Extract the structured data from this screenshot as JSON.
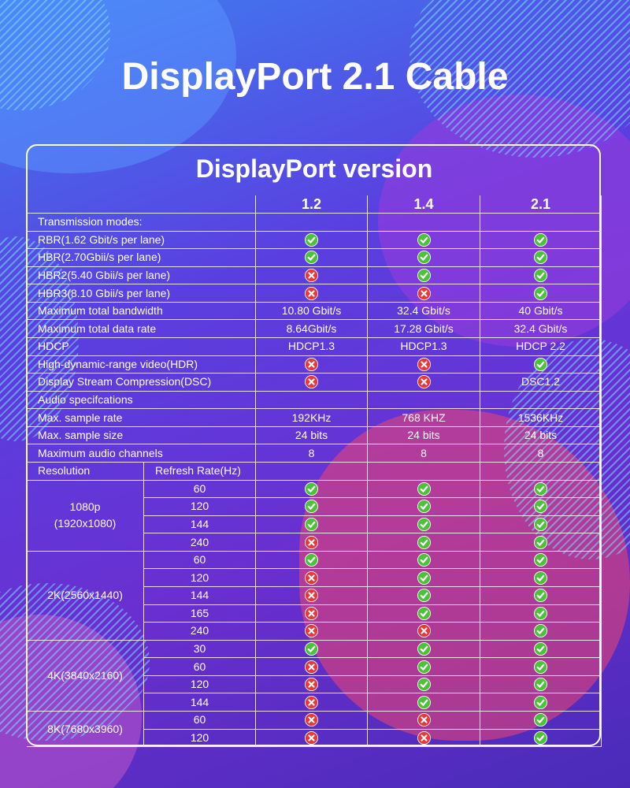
{
  "title": "DisplayPort 2.1 Cable",
  "table": {
    "heading": "DisplayPort version",
    "columns": [
      "1.2",
      "1.4",
      "2.1"
    ],
    "rows": [
      {
        "label": "Transmission modes:"
      },
      {
        "label": "RBR(1.62 Gbit/s per lane)",
        "cells": [
          true,
          true,
          true
        ]
      },
      {
        "label": "HBR(2.70Gbii/s per lane)",
        "cells": [
          true,
          true,
          true
        ]
      },
      {
        "label": "HBR2(5.40 Gbii/s per lane)",
        "cells": [
          false,
          true,
          true
        ]
      },
      {
        "label": "HBR3(8.10 Gbii/s per lane)",
        "cells": [
          false,
          false,
          true
        ]
      },
      {
        "label": "Maximum total bandwidth",
        "cells": [
          "10.80 Gbit/s",
          "32.4 Gbit/s",
          "40 Gbit/s"
        ]
      },
      {
        "label": "Maximum total data rate",
        "cells": [
          "8.64Gbit/s",
          "17.28 Gbit/s",
          "32.4 Gbit/s"
        ]
      },
      {
        "label": "HDCP",
        "cells": [
          "HDCP1.3",
          "HDCP1.3",
          "HDCP 2.2"
        ]
      },
      {
        "label": "High-dynamic-range video(HDR)",
        "cells": [
          false,
          false,
          true
        ]
      },
      {
        "label": "Display Stream Compression(DSC)",
        "cells": [
          false,
          false,
          "DSC1.2"
        ]
      },
      {
        "label": "Audio specifcations"
      },
      {
        "label": "Max. sample rate",
        "cells": [
          "192KHz",
          "768 KHZ",
          "1536KHz"
        ]
      },
      {
        "label": "Max. sample size",
        "cells": [
          "24 bits",
          "24 bits",
          "24 bits"
        ]
      },
      {
        "label": "Maximum audio channels",
        "cells": [
          "8",
          "8",
          "8"
        ]
      }
    ],
    "resolution_header": {
      "label": "Resolution",
      "sublabel": "Refresh Rate(Hz)"
    },
    "resolutions": [
      {
        "label": [
          "1080p",
          "(1920x1080)"
        ],
        "rows": [
          {
            "rate": "60",
            "cells": [
              true,
              true,
              true
            ]
          },
          {
            "rate": "120",
            "cells": [
              true,
              true,
              true
            ]
          },
          {
            "rate": "144",
            "cells": [
              true,
              true,
              true
            ]
          },
          {
            "rate": "240",
            "cells": [
              false,
              true,
              true
            ]
          }
        ]
      },
      {
        "label": [
          "2K(2560x1440)"
        ],
        "rows": [
          {
            "rate": "60",
            "cells": [
              true,
              true,
              true
            ]
          },
          {
            "rate": "120",
            "cells": [
              false,
              true,
              true
            ]
          },
          {
            "rate": "144",
            "cells": [
              false,
              true,
              true
            ]
          },
          {
            "rate": "165",
            "cells": [
              false,
              true,
              true
            ]
          },
          {
            "rate": "240",
            "cells": [
              false,
              false,
              true
            ]
          }
        ]
      },
      {
        "label": [
          "4K(3840x2160)"
        ],
        "rows": [
          {
            "rate": "30",
            "cells": [
              true,
              true,
              true
            ]
          },
          {
            "rate": "60",
            "cells": [
              false,
              true,
              true
            ]
          },
          {
            "rate": "120",
            "cells": [
              false,
              true,
              true
            ]
          },
          {
            "rate": "144",
            "cells": [
              false,
              true,
              true
            ]
          }
        ]
      },
      {
        "label": [
          "8K(7680x3960)"
        ],
        "rows": [
          {
            "rate": "60",
            "cells": [
              false,
              false,
              true
            ]
          },
          {
            "rate": "120",
            "cells": [
              false,
              false,
              true
            ]
          }
        ]
      }
    ]
  }
}
